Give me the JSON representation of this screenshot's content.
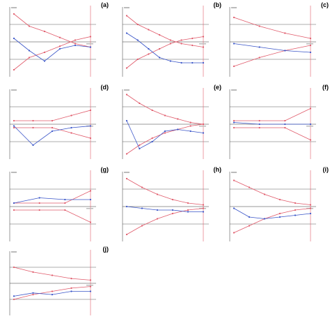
{
  "figure": {
    "background": "#ffffff"
  },
  "colors": {
    "boundary": "#e05a6a",
    "cumulative": "#3a55c8",
    "axis": "#333333",
    "ref": "#888888"
  },
  "panels": [
    {
      "letter": "(a)"
    },
    {
      "letter": "(b)"
    },
    {
      "letter": "(c)"
    },
    {
      "letter": "(d)"
    },
    {
      "letter": "(e)"
    },
    {
      "letter": "(f)"
    },
    {
      "letter": "(g)"
    },
    {
      "letter": "(h)"
    },
    {
      "letter": "(i)"
    },
    {
      "letter": "(j)"
    }
  ],
  "chart_data": [
    {
      "type": "line",
      "panel": "(a)",
      "series": [
        {
          "values": [
            1.6,
            0.9,
            0.6,
            0.25,
            -0.1,
            -0.3
          ]
        },
        {
          "values": [
            -1.6,
            -0.9,
            -0.6,
            -0.25,
            0.1,
            0.3
          ]
        },
        {
          "values": [
            0.2,
            -0.5,
            -1.1,
            -0.4,
            -0.2,
            -0.3
          ]
        }
      ]
    },
    {
      "type": "line",
      "panel": "(b)",
      "series": [
        {
          "values": [
            1.5,
            1.0,
            0.7,
            0.4,
            0.1,
            -0.1,
            -0.2,
            -0.3
          ]
        },
        {
          "values": [
            -1.5,
            -1.0,
            -0.7,
            -0.4,
            -0.1,
            0.1,
            0.2,
            0.3
          ]
        },
        {
          "values": [
            0.5,
            0.1,
            -0.4,
            -0.9,
            -1.1,
            -1.2,
            -1.2,
            -1.2
          ]
        }
      ]
    },
    {
      "type": "line",
      "panel": "(c)",
      "series": [
        {
          "values": [
            1.4,
            0.9,
            0.5,
            0.2
          ]
        },
        {
          "values": [
            -1.4,
            -0.9,
            -0.5,
            -0.2
          ]
        },
        {
          "values": [
            -0.1,
            -0.3,
            -0.5,
            -0.6
          ]
        }
      ]
    },
    {
      "type": "line",
      "panel": "(d)",
      "series": [
        {
          "values": [
            0.2,
            0.2,
            0.2,
            0.5,
            0.8
          ]
        },
        {
          "values": [
            -0.2,
            -0.2,
            -0.2,
            -0.5,
            -0.8
          ]
        },
        {
          "values": [
            -0.1,
            -1.2,
            -0.4,
            -0.2,
            -0.1
          ]
        }
      ]
    },
    {
      "type": "line",
      "panel": "(e)",
      "series": [
        {
          "values": [
            1.7,
            1.2,
            0.8,
            0.5,
            0.3,
            0.1,
            0.0
          ]
        },
        {
          "values": [
            -1.7,
            -1.2,
            -0.8,
            -0.5,
            -0.3,
            -0.1,
            0.0
          ]
        },
        {
          "values": [
            0.2,
            -1.4,
            -1.0,
            -0.4,
            -0.3,
            -0.4,
            -0.5
          ]
        }
      ]
    },
    {
      "type": "line",
      "panel": "(f)",
      "series": [
        {
          "values": [
            0.2,
            0.2,
            0.2,
            0.9
          ]
        },
        {
          "values": [
            -0.2,
            -0.2,
            -0.2,
            -0.9
          ]
        },
        {
          "values": [
            0.1,
            0.0,
            0.0,
            0.0
          ]
        }
      ]
    },
    {
      "type": "line",
      "panel": "(g)",
      "series": [
        {
          "values": [
            0.2,
            0.2,
            0.2,
            0.9
          ]
        },
        {
          "values": [
            -0.2,
            -0.2,
            -0.2,
            -0.9
          ]
        },
        {
          "values": [
            0.2,
            0.5,
            0.4,
            0.4
          ]
        }
      ]
    },
    {
      "type": "line",
      "panel": "(h)",
      "series": [
        {
          "values": [
            1.6,
            1.1,
            0.7,
            0.4,
            0.2,
            0.1
          ]
        },
        {
          "values": [
            -1.6,
            -1.1,
            -0.7,
            -0.4,
            -0.2,
            -0.1
          ]
        },
        {
          "values": [
            0.0,
            -0.1,
            -0.2,
            -0.2,
            -0.3,
            -0.3
          ]
        }
      ]
    },
    {
      "type": "line",
      "panel": "(i)",
      "series": [
        {
          "values": [
            1.5,
            1.1,
            0.7,
            0.4,
            0.2,
            0.1
          ]
        },
        {
          "values": [
            -1.5,
            -1.1,
            -0.7,
            -0.4,
            -0.2,
            -0.1
          ]
        },
        {
          "values": [
            -0.1,
            -0.6,
            -0.7,
            -0.6,
            -0.5,
            -0.4
          ]
        }
      ]
    },
    {
      "type": "line",
      "panel": "(j)",
      "series": [
        {
          "values": [
            1.0,
            0.7,
            0.5,
            0.3,
            0.2
          ]
        },
        {
          "values": [
            -1.0,
            -0.7,
            -0.5,
            -0.3,
            -0.2
          ]
        },
        {
          "values": [
            -0.8,
            -0.6,
            -0.7,
            -0.5,
            -0.5
          ]
        }
      ]
    }
  ]
}
